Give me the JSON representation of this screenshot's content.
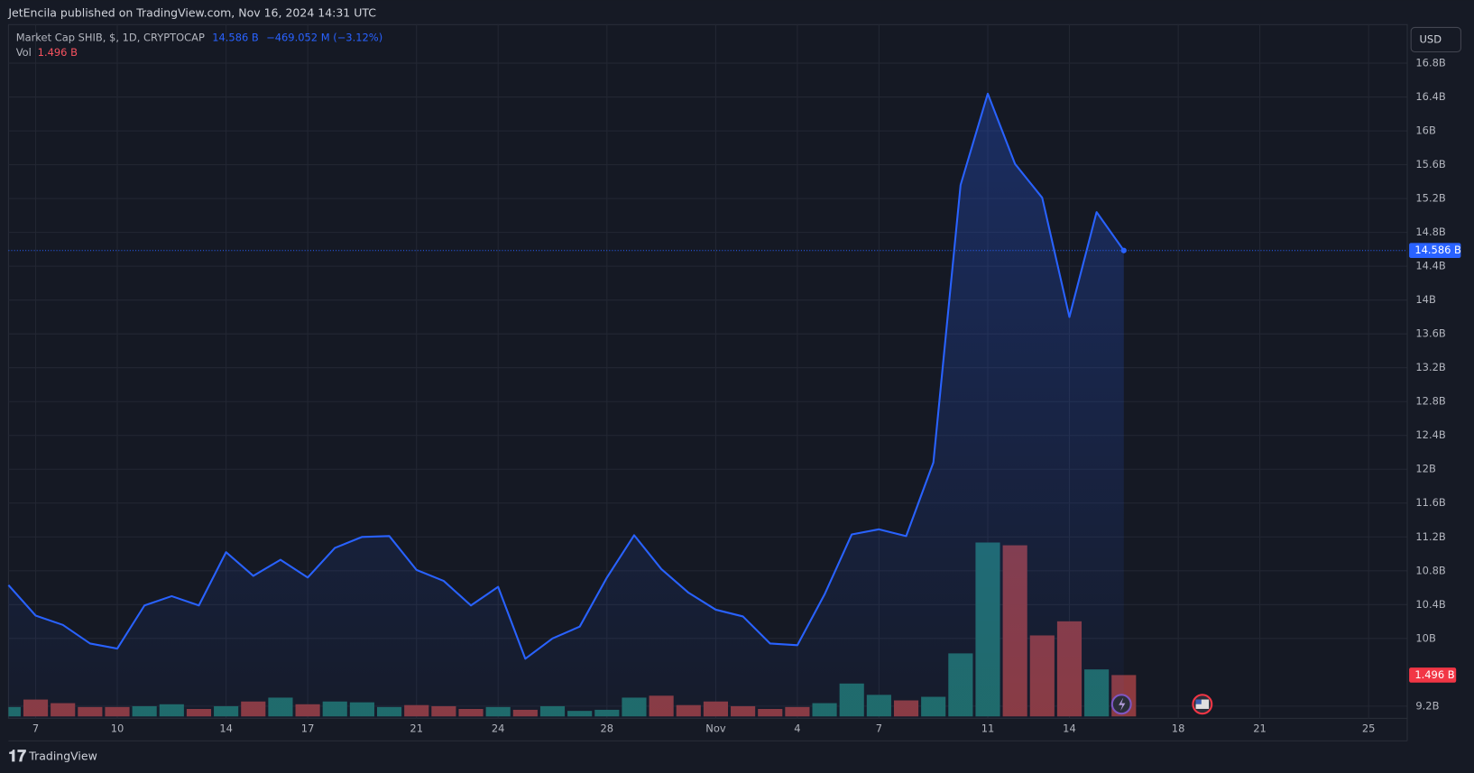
{
  "chart_data": {
    "type": "line",
    "publisher": "JetEncila published on TradingView.com, Nov 16, 2024 14:31 UTC",
    "title": "Market Cap SHIB, $, 1D, CRYPTOCAP",
    "last_value_label": "14.586 B",
    "change": "−469.052 M (−3.12%)",
    "currency": "USD",
    "brand": "TradingView",
    "x": [
      0,
      1,
      2,
      3,
      4,
      5,
      6,
      7,
      8,
      9,
      10,
      11,
      12,
      13,
      14,
      15,
      16,
      17,
      18,
      19,
      20,
      21,
      22,
      23,
      24,
      25,
      26,
      27,
      28,
      29,
      30,
      31,
      32,
      33,
      34,
      35,
      36,
      37,
      38,
      39,
      40,
      41
    ],
    "xlim": [
      0,
      51.42
    ],
    "xticks": [
      {
        "value": 1,
        "label": "7"
      },
      {
        "value": 4,
        "label": "10"
      },
      {
        "value": 8,
        "label": "14"
      },
      {
        "value": 11,
        "label": "17"
      },
      {
        "value": 15,
        "label": "21"
      },
      {
        "value": 18,
        "label": "24"
      },
      {
        "value": 22,
        "label": "28"
      },
      {
        "value": 26,
        "label": "Nov"
      },
      {
        "value": 29,
        "label": "4"
      },
      {
        "value": 32,
        "label": "7"
      },
      {
        "value": 36,
        "label": "11"
      },
      {
        "value": 39,
        "label": "14"
      },
      {
        "value": 43,
        "label": "18"
      },
      {
        "value": 46,
        "label": "21"
      },
      {
        "value": 50,
        "label": "25"
      }
    ],
    "ylim": [
      9.056,
      17.256
    ],
    "yticks": [
      {
        "value": 16.8,
        "label": "16.8B"
      },
      {
        "value": 16.4,
        "label": "16.4B"
      },
      {
        "value": 16,
        "label": "16B"
      },
      {
        "value": 15.6,
        "label": "15.6B"
      },
      {
        "value": 15.2,
        "label": "15.2B"
      },
      {
        "value": 14.8,
        "label": "14.8B"
      },
      {
        "value": 14.4,
        "label": "14.4B"
      },
      {
        "value": 14,
        "label": "14B"
      },
      {
        "value": 13.6,
        "label": "13.6B"
      },
      {
        "value": 13.2,
        "label": "13.2B"
      },
      {
        "value": 12.8,
        "label": "12.8B"
      },
      {
        "value": 12.4,
        "label": "12.4B"
      },
      {
        "value": 12,
        "label": "12B"
      },
      {
        "value": 11.6,
        "label": "11.6B"
      },
      {
        "value": 11.2,
        "label": "11.2B"
      },
      {
        "value": 10.8,
        "label": "10.8B"
      },
      {
        "value": 10.4,
        "label": "10.4B"
      },
      {
        "value": 10,
        "label": "10B"
      },
      {
        "value": 9.2,
        "label": "9.2B"
      }
    ],
    "grid": true,
    "series": [
      {
        "color": "#2962ff",
        "values": [
          10.63,
          10.27,
          10.16,
          9.94,
          9.88,
          10.39,
          10.5,
          10.39,
          11.02,
          10.74,
          10.93,
          10.72,
          11.07,
          11.2,
          11.21,
          10.81,
          10.68,
          10.39,
          10.61,
          9.76,
          10.0,
          10.14,
          10.72,
          11.22,
          10.82,
          10.54,
          10.34,
          10.26,
          9.94,
          9.92,
          10.52,
          11.23,
          11.29,
          11.21,
          12.08,
          15.36,
          16.44,
          15.61,
          15.21,
          13.8,
          15.04,
          14.586
        ]
      }
    ],
    "volume": {
      "name": "Vol",
      "last_label": "1.496 B",
      "values": [
        0.34,
        0.61,
        0.48,
        0.34,
        0.34,
        0.37,
        0.44,
        0.27,
        0.37,
        0.54,
        0.68,
        0.44,
        0.54,
        0.51,
        0.34,
        0.41,
        0.37,
        0.27,
        0.34,
        0.24,
        0.37,
        0.2,
        0.24,
        0.68,
        0.75,
        0.41,
        0.54,
        0.37,
        0.27,
        0.34,
        0.48,
        1.19,
        0.78,
        0.58,
        0.71,
        2.28,
        6.29,
        6.19,
        2.93,
        3.44,
        1.7,
        1.496
      ],
      "colors": [
        "#1f6b67",
        "#8c3a3f",
        "#8c3a3f",
        "#8c3a3f",
        "#8c3a3f",
        "#1f6b67",
        "#1f6b67",
        "#8c3a3f",
        "#1f6b67",
        "#8c3a3f",
        "#1f6b67",
        "#8c3a3f",
        "#1f6b67",
        "#1f6b67",
        "#1f6b67",
        "#8c3a3f",
        "#8c3a3f",
        "#8c3a3f",
        "#1f6b67",
        "#8c3a3f",
        "#1f6b67",
        "#1f6b67",
        "#1f6b67",
        "#1f6b67",
        "#8c3a3f",
        "#8c3a3f",
        "#8c3a3f",
        "#8c3a3f",
        "#8c3a3f",
        "#8c3a3f",
        "#1f6b67",
        "#1f6b67",
        "#1f6b67",
        "#8c3a3f",
        "#1f6b67",
        "#1f6b67",
        "#1f6b67",
        "#8c3a3f",
        "#8c3a3f",
        "#8c3a3f",
        "#1f6b67",
        "#8c3a3f"
      ]
    }
  }
}
